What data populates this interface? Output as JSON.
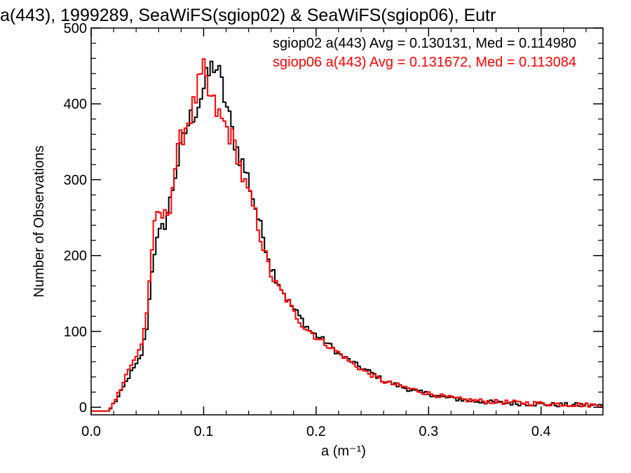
{
  "title": "a(443), 1999289, SeaWiFS(sgiop02) & SeaWiFS(sgiop06), Eutr",
  "legend": [
    {
      "text": "sgiop02 a(443) Avg = 0.130131, Med = 0.114980",
      "color": "#000000"
    },
    {
      "text": "sgiop06 a(443) Avg = 0.131672, Med = 0.113084",
      "color": "#ff0000"
    }
  ],
  "chart_data": {
    "type": "histogram",
    "title": "a(443), 1999289, SeaWiFS(sgiop02) & SeaWiFS(sgiop06), Eutr",
    "xlabel": "a (m⁻¹)",
    "ylabel": "Number of Observations",
    "xlim": [
      0,
      0.455
    ],
    "ylim": [
      -10,
      500
    ],
    "xticks": [
      0.0,
      0.1,
      0.2,
      0.3,
      0.4
    ],
    "xtick_labels": [
      "0.0",
      "0.1",
      "0.2",
      "0.3",
      "0.4"
    ],
    "yticks": [
      0,
      100,
      200,
      300,
      400,
      500
    ],
    "ytick_labels": [
      "0",
      "100",
      "200",
      "300",
      "400",
      "500"
    ],
    "grid": false,
    "legend_position": "top-right",
    "series": [
      {
        "name": "sgiop02",
        "color": "#000000",
        "points": [
          [
            0,
            -5
          ],
          [
            0.016,
            -5
          ],
          [
            0.02,
            5
          ],
          [
            0.025,
            15
          ],
          [
            0.03,
            30
          ],
          [
            0.035,
            45
          ],
          [
            0.04,
            55
          ],
          [
            0.045,
            70
          ],
          [
            0.05,
            110
          ],
          [
            0.055,
            200
          ],
          [
            0.06,
            225
          ],
          [
            0.065,
            240
          ],
          [
            0.07,
            270
          ],
          [
            0.075,
            310
          ],
          [
            0.08,
            340
          ],
          [
            0.085,
            370
          ],
          [
            0.09,
            385
          ],
          [
            0.095,
            400
          ],
          [
            0.1,
            420
          ],
          [
            0.105,
            440
          ],
          [
            0.11,
            455
          ],
          [
            0.115,
            430
          ],
          [
            0.12,
            400
          ],
          [
            0.125,
            365
          ],
          [
            0.13,
            340
          ],
          [
            0.135,
            320
          ],
          [
            0.14,
            300
          ],
          [
            0.145,
            270
          ],
          [
            0.15,
            240
          ],
          [
            0.155,
            215
          ],
          [
            0.16,
            185
          ],
          [
            0.165,
            170
          ],
          [
            0.17,
            155
          ],
          [
            0.175,
            140
          ],
          [
            0.18,
            130
          ],
          [
            0.185,
            120
          ],
          [
            0.19,
            110
          ],
          [
            0.195,
            100
          ],
          [
            0.2,
            95
          ],
          [
            0.21,
            85
          ],
          [
            0.22,
            70
          ],
          [
            0.23,
            62
          ],
          [
            0.24,
            52
          ],
          [
            0.25,
            45
          ],
          [
            0.26,
            35
          ],
          [
            0.27,
            30
          ],
          [
            0.28,
            25
          ],
          [
            0.29,
            20
          ],
          [
            0.3,
            18
          ],
          [
            0.31,
            14
          ],
          [
            0.32,
            12
          ],
          [
            0.33,
            10
          ],
          [
            0.34,
            8
          ],
          [
            0.35,
            7
          ],
          [
            0.36,
            6
          ],
          [
            0.38,
            5
          ],
          [
            0.4,
            4
          ],
          [
            0.42,
            3
          ],
          [
            0.44,
            3
          ],
          [
            0.455,
            2
          ]
        ]
      },
      {
        "name": "sgiop06",
        "color": "#ff0000",
        "points": [
          [
            0,
            -5
          ],
          [
            0.016,
            -5
          ],
          [
            0.02,
            8
          ],
          [
            0.025,
            20
          ],
          [
            0.03,
            40
          ],
          [
            0.035,
            55
          ],
          [
            0.04,
            65
          ],
          [
            0.045,
            85
          ],
          [
            0.05,
            130
          ],
          [
            0.055,
            230
          ],
          [
            0.06,
            255
          ],
          [
            0.065,
            250
          ],
          [
            0.07,
            265
          ],
          [
            0.075,
            320
          ],
          [
            0.08,
            355
          ],
          [
            0.085,
            375
          ],
          [
            0.09,
            390
          ],
          [
            0.095,
            420
          ],
          [
            0.1,
            440
          ],
          [
            0.105,
            410
          ],
          [
            0.11,
            395
          ],
          [
            0.115,
            380
          ],
          [
            0.12,
            370
          ],
          [
            0.125,
            355
          ],
          [
            0.13,
            335
          ],
          [
            0.135,
            300
          ],
          [
            0.14,
            280
          ],
          [
            0.145,
            260
          ],
          [
            0.15,
            230
          ],
          [
            0.155,
            200
          ],
          [
            0.16,
            175
          ],
          [
            0.165,
            160
          ],
          [
            0.17,
            150
          ],
          [
            0.175,
            140
          ],
          [
            0.18,
            125
          ],
          [
            0.185,
            115
          ],
          [
            0.19,
            105
          ],
          [
            0.195,
            100
          ],
          [
            0.2,
            92
          ],
          [
            0.21,
            82
          ],
          [
            0.22,
            72
          ],
          [
            0.23,
            60
          ],
          [
            0.24,
            50
          ],
          [
            0.25,
            42
          ],
          [
            0.26,
            34
          ],
          [
            0.27,
            30
          ],
          [
            0.28,
            26
          ],
          [
            0.29,
            22
          ],
          [
            0.3,
            18
          ],
          [
            0.31,
            15
          ],
          [
            0.32,
            12
          ],
          [
            0.33,
            10
          ],
          [
            0.34,
            9
          ],
          [
            0.35,
            8
          ],
          [
            0.36,
            7
          ],
          [
            0.38,
            6
          ],
          [
            0.4,
            5
          ],
          [
            0.42,
            4
          ],
          [
            0.44,
            3
          ],
          [
            0.455,
            3
          ]
        ]
      }
    ]
  }
}
